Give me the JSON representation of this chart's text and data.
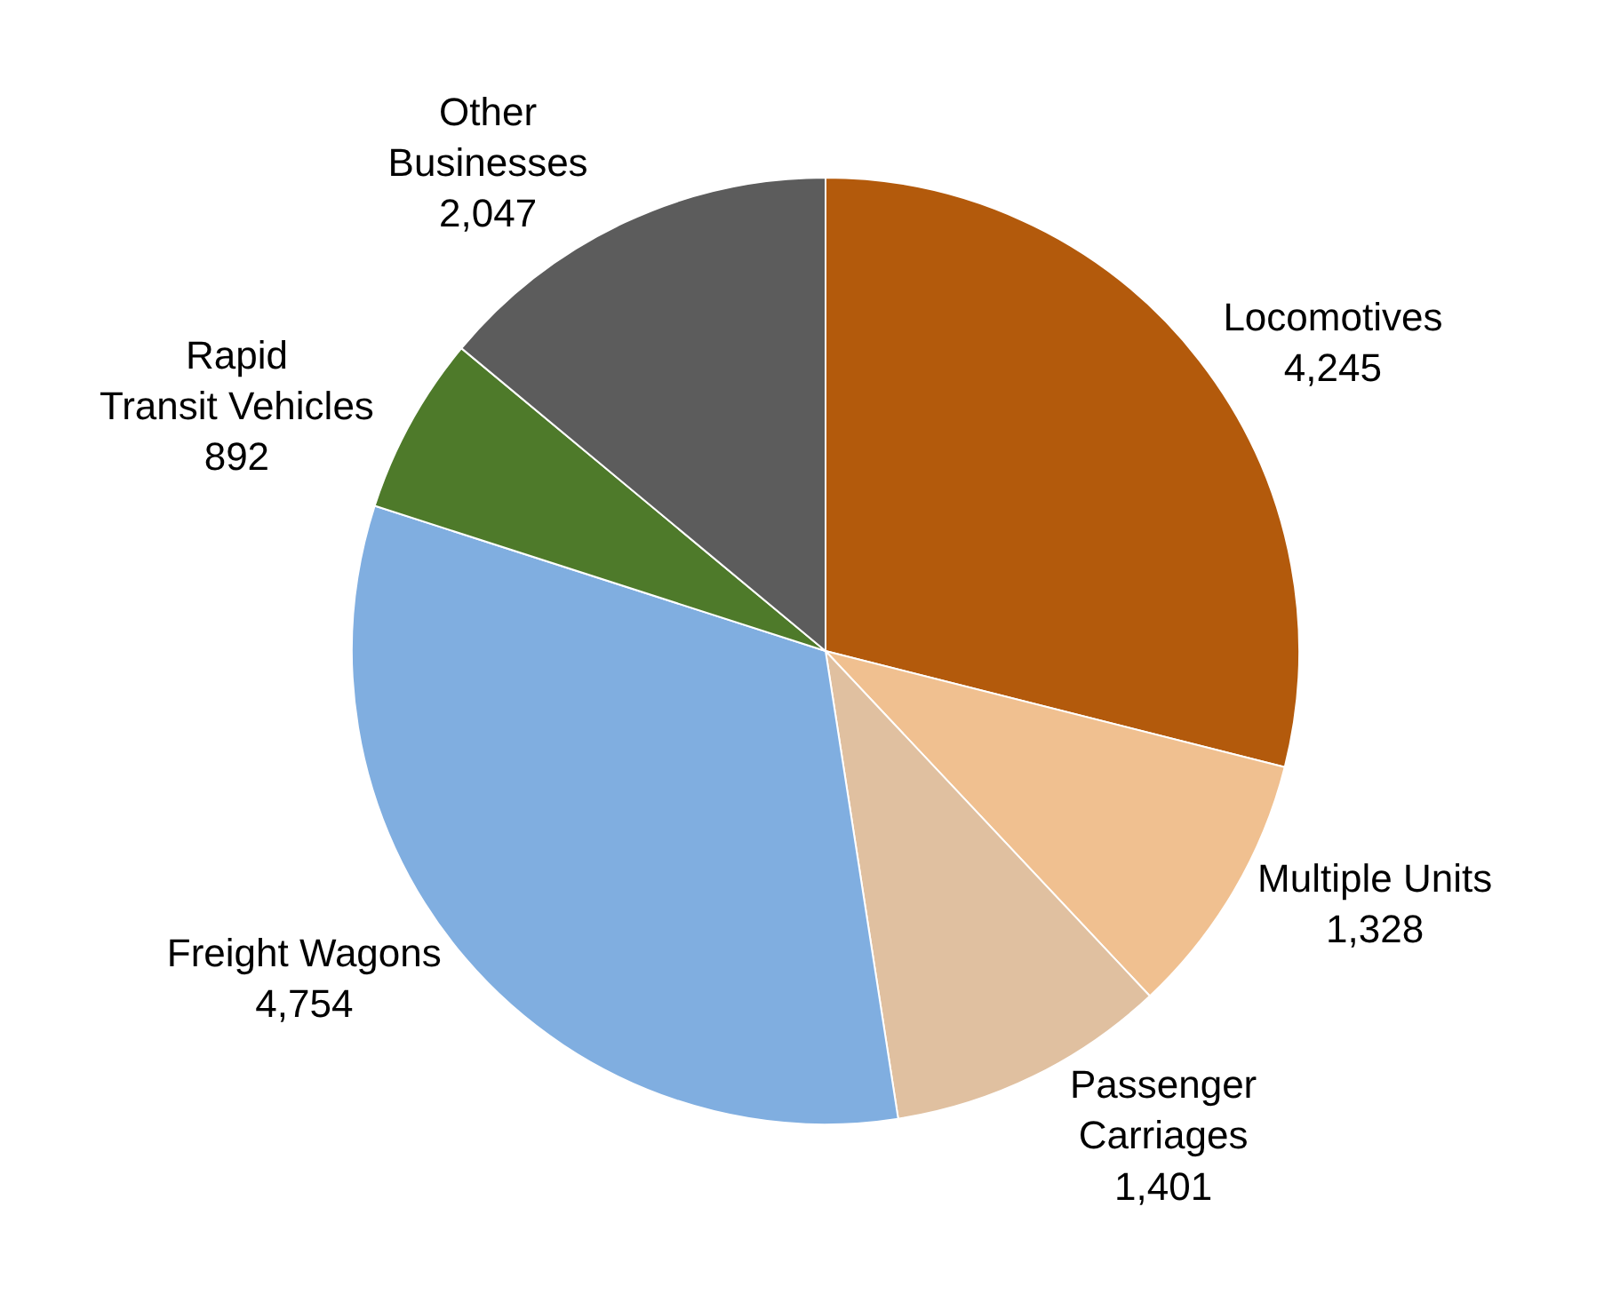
{
  "chart_data": {
    "type": "pie",
    "categories": [
      "Locomotives",
      "Multiple Units",
      "Passenger Carriages",
      "Freight Wagons",
      "Rapid Transit Vehicles",
      "Other Businesses"
    ],
    "values": [
      4245,
      1328,
      1401,
      4754,
      892,
      2047
    ],
    "value_labels": [
      "4,245",
      "1,328",
      "1,401",
      "4,754",
      "892",
      "2,047"
    ],
    "colors": [
      "#b35a0c",
      "#f0c090",
      "#e0c0a0",
      "#80aee0",
      "#4e7a2a",
      "#5c5c5c"
    ],
    "legend": false
  }
}
